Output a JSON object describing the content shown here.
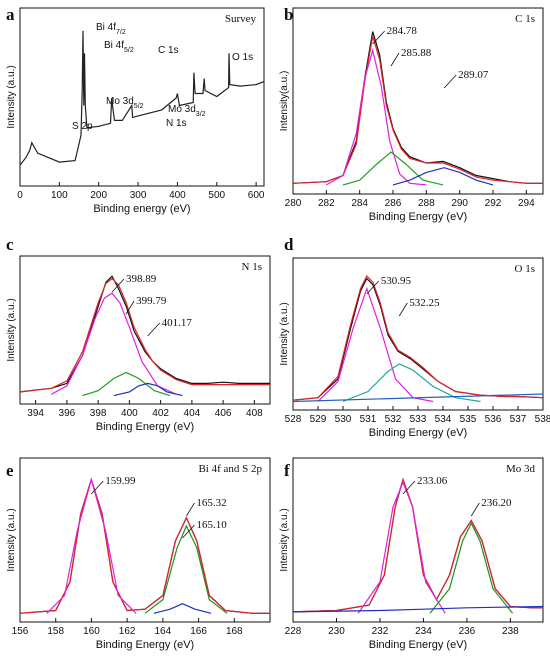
{
  "chart_data": [
    {
      "panel": "a",
      "type": "line",
      "title": "Survey",
      "xlabel": "Binding energy (eV)",
      "ylabel": "Intensity (a.u.)",
      "xlim": [
        0,
        620
      ],
      "xticks": [
        "0",
        "100",
        "200",
        "300",
        "400",
        "500",
        "600"
      ],
      "annotations": [
        {
          "label": "Bi 4f",
          "sub": "7/2"
        },
        {
          "label": "Bi 4f",
          "sub": "5/2"
        },
        {
          "label": "Mo 3d",
          "sub": "5/2"
        },
        {
          "label": "Mo 3d",
          "sub": "3/2"
        },
        {
          "label": "C 1s",
          "sub": ""
        },
        {
          "label": "S 2p",
          "sub": ""
        },
        {
          "label": "N 1s",
          "sub": ""
        },
        {
          "label": "O 1s",
          "sub": ""
        }
      ],
      "series": [
        {
          "color": "#222222",
          "x": [
            0,
            15,
            25,
            30,
            45,
            100,
            140,
            155,
            158,
            160,
            162,
            164,
            166,
            170,
            200,
            230,
            233,
            236,
            240,
            260,
            284,
            286,
            300,
            330,
            360,
            397,
            400,
            405,
            440,
            442,
            445,
            465,
            468,
            470,
            500,
            530,
            531,
            533,
            560,
            600,
            620
          ],
          "y": [
            0.1,
            0.15,
            0.2,
            0.25,
            0.18,
            0.12,
            0.13,
            0.3,
            0.6,
            1.0,
            0.5,
            0.85,
            0.5,
            0.35,
            0.36,
            0.38,
            0.55,
            0.48,
            0.4,
            0.4,
            0.5,
            0.42,
            0.43,
            0.45,
            0.47,
            0.55,
            0.58,
            0.5,
            0.52,
            0.72,
            0.58,
            0.58,
            0.68,
            0.6,
            0.56,
            0.62,
            0.85,
            0.64,
            0.63,
            0.64,
            0.66
          ]
        }
      ]
    },
    {
      "panel": "b",
      "type": "line",
      "title": "C 1s",
      "xlabel": "Binding Energy (eV)",
      "ylabel": "Intensity(a.u.)",
      "xlim": [
        280,
        295
      ],
      "xticks": [
        "280",
        "282",
        "284",
        "286",
        "288",
        "290",
        "292",
        "294"
      ],
      "peak_labels": [
        {
          "x": 284.78,
          "text": "284.78"
        },
        {
          "x": 285.88,
          "text": "285.88"
        },
        {
          "x": 289.07,
          "text": "289.07"
        }
      ],
      "series": [
        {
          "color": "#111111",
          "x": [
            280,
            282,
            283,
            283.8,
            284.3,
            284.78,
            285.2,
            285.6,
            286,
            286.5,
            287,
            288,
            289,
            290,
            291,
            292,
            293,
            294,
            295
          ],
          "y": [
            0.03,
            0.04,
            0.08,
            0.3,
            0.7,
            1.0,
            0.85,
            0.55,
            0.38,
            0.26,
            0.2,
            0.16,
            0.17,
            0.13,
            0.08,
            0.06,
            0.04,
            0.03,
            0.03
          ]
        },
        {
          "color": "#e0242c",
          "x": [
            280,
            282,
            283,
            283.8,
            284.3,
            284.78,
            285.2,
            285.6,
            286,
            286.5,
            287,
            288,
            289,
            290,
            291,
            292,
            293,
            294,
            295
          ],
          "y": [
            0.03,
            0.04,
            0.08,
            0.28,
            0.68,
            0.97,
            0.82,
            0.53,
            0.37,
            0.25,
            0.19,
            0.16,
            0.16,
            0.12,
            0.07,
            0.05,
            0.04,
            0.03,
            0.03
          ]
        },
        {
          "color": "#e020e0",
          "x": [
            282,
            283,
            283.8,
            284.3,
            284.78,
            285.3,
            285.8,
            286.4,
            287,
            288
          ],
          "y": [
            0.02,
            0.08,
            0.35,
            0.7,
            0.88,
            0.65,
            0.3,
            0.09,
            0.03,
            0.02
          ]
        },
        {
          "color": "#20a020",
          "x": [
            283,
            284,
            285,
            285.88,
            286.8,
            287.8,
            289
          ],
          "y": [
            0.02,
            0.05,
            0.15,
            0.23,
            0.15,
            0.05,
            0.02
          ]
        },
        {
          "color": "#2030c0",
          "x": [
            286,
            287,
            288,
            289.07,
            290,
            291,
            292
          ],
          "y": [
            0.02,
            0.05,
            0.1,
            0.13,
            0.1,
            0.05,
            0.02
          ]
        }
      ]
    },
    {
      "panel": "c",
      "type": "line",
      "title": "N 1s",
      "xlabel": "Binding Energy (eV)",
      "ylabel": "Intensity (a.u.)",
      "xlim": [
        393,
        409
      ],
      "xticks": [
        "394",
        "396",
        "398",
        "400",
        "402",
        "404",
        "406",
        "408"
      ],
      "peak_labels": [
        {
          "x": 398.89,
          "text": "398.89"
        },
        {
          "x": 399.79,
          "text": "399.79"
        },
        {
          "x": 401.17,
          "text": "401.17"
        }
      ],
      "series": [
        {
          "color": "#111111",
          "x": [
            393,
            395,
            396,
            397,
            397.5,
            398,
            398.5,
            398.89,
            399.3,
            399.8,
            400.3,
            401,
            401.5,
            402,
            403,
            404,
            405,
            406,
            407,
            408,
            409
          ],
          "y": [
            0.05,
            0.08,
            0.12,
            0.35,
            0.55,
            0.75,
            0.95,
            1.0,
            0.9,
            0.75,
            0.55,
            0.38,
            0.3,
            0.24,
            0.16,
            0.12,
            0.12,
            0.13,
            0.12,
            0.12,
            0.12
          ]
        },
        {
          "color": "#e0242c",
          "x": [
            393,
            395,
            396,
            397,
            397.5,
            398,
            398.5,
            398.89,
            399.3,
            399.8,
            400.3,
            401,
            401.5,
            402,
            403,
            404,
            405,
            406,
            407,
            408,
            409
          ],
          "y": [
            0.05,
            0.08,
            0.14,
            0.38,
            0.58,
            0.78,
            0.94,
            0.98,
            0.93,
            0.78,
            0.58,
            0.4,
            0.3,
            0.23,
            0.15,
            0.11,
            0.11,
            0.11,
            0.11,
            0.11,
            0.11
          ]
        },
        {
          "color": "#e020e0",
          "x": [
            395,
            396,
            397,
            397.8,
            398.4,
            398.89,
            399.4,
            400,
            400.8,
            401.8,
            403
          ],
          "y": [
            0.03,
            0.1,
            0.35,
            0.65,
            0.82,
            0.86,
            0.78,
            0.58,
            0.3,
            0.1,
            0.03
          ]
        },
        {
          "color": "#20a020",
          "x": [
            397,
            398,
            399,
            399.79,
            400.6,
            401.6,
            402.6
          ],
          "y": [
            0.02,
            0.06,
            0.16,
            0.21,
            0.16,
            0.06,
            0.02
          ]
        },
        {
          "color": "#2030c0",
          "x": [
            399,
            400,
            400.6,
            401.17,
            401.8,
            402.4,
            403.4
          ],
          "y": [
            0.02,
            0.05,
            0.1,
            0.12,
            0.1,
            0.05,
            0.02
          ]
        }
      ]
    },
    {
      "panel": "d",
      "type": "line",
      "title": "O 1s",
      "xlabel": "Binding Energy (eV)",
      "ylabel": "Intensity (a.u.)",
      "xlim": [
        528,
        538
      ],
      "xticks": [
        "528",
        "529",
        "530",
        "531",
        "532",
        "533",
        "534",
        "535",
        "536",
        "537",
        "538"
      ],
      "peak_labels": [
        {
          "x": 530.95,
          "text": "530.95"
        },
        {
          "x": 532.25,
          "text": "532.25"
        }
      ],
      "series": [
        {
          "color": "#111111",
          "x": [
            528,
            529,
            529.8,
            530.3,
            530.7,
            530.95,
            531.2,
            531.5,
            531.8,
            532.2,
            532.7,
            533.2,
            533.8,
            534.5,
            535.5,
            536.5,
            537,
            538
          ],
          "y": [
            0.03,
            0.05,
            0.2,
            0.6,
            0.9,
            1.0,
            0.95,
            0.78,
            0.55,
            0.42,
            0.36,
            0.28,
            0.18,
            0.1,
            0.07,
            0.06,
            0.06,
            0.05
          ]
        },
        {
          "color": "#e0242c",
          "x": [
            528,
            529,
            529.8,
            530.3,
            530.7,
            530.95,
            531.2,
            531.5,
            531.8,
            532.2,
            532.7,
            533.2,
            533.8,
            534.5,
            535.5,
            536.5,
            537,
            538
          ],
          "y": [
            0.03,
            0.05,
            0.22,
            0.63,
            0.92,
            1.02,
            0.97,
            0.8,
            0.57,
            0.43,
            0.37,
            0.29,
            0.18,
            0.1,
            0.07,
            0.06,
            0.06,
            0.05
          ]
        },
        {
          "color": "#e020e0",
          "x": [
            529,
            529.8,
            530.4,
            530.95,
            531.5,
            532.1,
            532.8,
            533.6
          ],
          "y": [
            0.02,
            0.18,
            0.6,
            0.92,
            0.6,
            0.2,
            0.05,
            0.02
          ]
        },
        {
          "color": "#20a89a",
          "x": [
            530,
            531,
            531.8,
            532.25,
            532.8,
            533.6,
            534.5,
            535.5
          ],
          "y": [
            0.02,
            0.1,
            0.26,
            0.32,
            0.27,
            0.14,
            0.05,
            0.02
          ]
        },
        {
          "color": "#2060c0",
          "x": [
            528,
            538
          ],
          "y": [
            0.02,
            0.08
          ]
        }
      ]
    },
    {
      "panel": "e",
      "type": "line",
      "title": "Bi 4f and S 2p",
      "xlabel": "Binding Energy (eV)",
      "ylabel": "Intensity (a.u.)",
      "xlim": [
        156,
        170
      ],
      "xticks": [
        "156",
        "158",
        "160",
        "162",
        "164",
        "166",
        "168"
      ],
      "peak_labels": [
        {
          "x": 159.99,
          "text": "159.99"
        },
        {
          "x": 165.32,
          "text": "165.32"
        },
        {
          "x": 165.1,
          "text": "165.10"
        }
      ],
      "series": [
        {
          "color": "#111111",
          "x": [
            156,
            158,
            158.8,
            159.4,
            159.99,
            160.6,
            161.2,
            162,
            163,
            164,
            164.7,
            165.32,
            165.9,
            166.6,
            167.5,
            169,
            170
          ],
          "y": [
            0.02,
            0.04,
            0.25,
            0.75,
            1.0,
            0.75,
            0.25,
            0.04,
            0.05,
            0.15,
            0.55,
            0.72,
            0.55,
            0.15,
            0.04,
            0.02,
            0.02
          ]
        },
        {
          "color": "#e0242c",
          "x": [
            156,
            158,
            158.8,
            159.4,
            159.99,
            160.6,
            161.2,
            162,
            163,
            164,
            164.7,
            165.32,
            165.9,
            166.6,
            167.5,
            169,
            170
          ],
          "y": [
            0.02,
            0.04,
            0.25,
            0.75,
            1.0,
            0.75,
            0.25,
            0.04,
            0.05,
            0.15,
            0.55,
            0.72,
            0.55,
            0.15,
            0.04,
            0.02,
            0.02
          ]
        },
        {
          "color": "#e020e0",
          "x": [
            157.5,
            158.5,
            159.2,
            159.99,
            160.8,
            161.5,
            162.5
          ],
          "y": [
            0.02,
            0.15,
            0.62,
            1.0,
            0.62,
            0.15,
            0.02
          ]
        },
        {
          "color": "#209020",
          "x": [
            163,
            164,
            164.8,
            165.32,
            165.9,
            166.6,
            167.6
          ],
          "y": [
            0.02,
            0.12,
            0.5,
            0.66,
            0.5,
            0.12,
            0.02
          ]
        },
        {
          "color": "#2030c0",
          "x": [
            163.5,
            164.4,
            165.1,
            165.8,
            166.7
          ],
          "y": [
            0.02,
            0.05,
            0.09,
            0.05,
            0.02
          ]
        }
      ]
    },
    {
      "panel": "f",
      "type": "line",
      "title": "Mo 3d",
      "xlabel": "Binding Energy (eV)",
      "ylabel": "Intensity (a.u.)",
      "xlim": [
        228,
        239.5
      ],
      "xticks": [
        "228",
        "230",
        "232",
        "234",
        "236",
        "238"
      ],
      "peak_labels": [
        {
          "x": 233.06,
          "text": "233.06"
        },
        {
          "x": 236.2,
          "text": "236.20"
        }
      ],
      "series": [
        {
          "color": "#111111",
          "x": [
            228,
            230,
            231.5,
            232.2,
            232.7,
            233.06,
            233.5,
            234,
            234.6,
            235.2,
            235.7,
            236.2,
            236.7,
            237.3,
            238,
            239,
            239.5
          ],
          "y": [
            0.03,
            0.04,
            0.08,
            0.3,
            0.8,
            1.0,
            0.8,
            0.3,
            0.12,
            0.3,
            0.58,
            0.7,
            0.55,
            0.2,
            0.07,
            0.06,
            0.06
          ]
        },
        {
          "color": "#e0242c",
          "x": [
            228,
            230,
            231.5,
            232.2,
            232.7,
            233.06,
            233.5,
            234,
            234.6,
            235.2,
            235.7,
            236.2,
            236.7,
            237.3,
            238,
            239,
            239.5
          ],
          "y": [
            0.03,
            0.04,
            0.08,
            0.3,
            0.8,
            1.0,
            0.8,
            0.3,
            0.12,
            0.3,
            0.58,
            0.7,
            0.55,
            0.2,
            0.07,
            0.06,
            0.06
          ]
        },
        {
          "color": "#e020e0",
          "x": [
            231,
            232,
            232.6,
            233.06,
            233.5,
            234.1,
            235
          ],
          "y": [
            0.02,
            0.25,
            0.8,
            0.98,
            0.8,
            0.25,
            0.02
          ]
        },
        {
          "color": "#209020",
          "x": [
            234.3,
            235.2,
            235.8,
            236.2,
            236.6,
            237.2,
            238.1
          ],
          "y": [
            0.02,
            0.2,
            0.55,
            0.68,
            0.55,
            0.2,
            0.02
          ]
        },
        {
          "color": "#2030c0",
          "x": [
            228,
            232,
            234,
            236,
            239.5
          ],
          "y": [
            0.03,
            0.04,
            0.05,
            0.06,
            0.07
          ]
        }
      ]
    }
  ]
}
